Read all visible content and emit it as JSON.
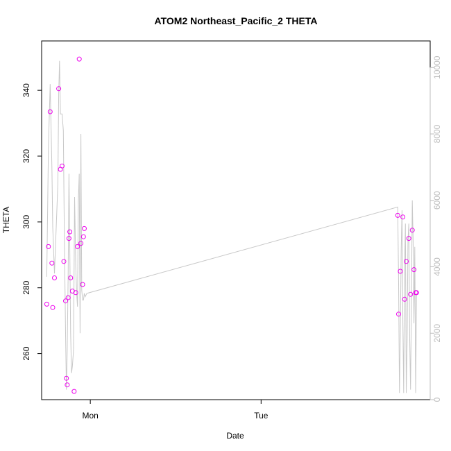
{
  "chart_data": {
    "type": "scatter",
    "title": "ATOM2 Northeast_Pacific_2 THETA",
    "xlabel": "Date",
    "ylabel": "THETA",
    "x_ticks": [
      {
        "label": "Mon",
        "value": 0
      },
      {
        "label": "Tue",
        "value": 1
      }
    ],
    "xlim": [
      -0.285,
      1.99
    ],
    "ylim": [
      246,
      355
    ],
    "yticks": [
      260,
      280,
      300,
      320,
      340
    ],
    "ylim_right": [
      0,
      10800
    ],
    "yticks_right": [
      0,
      2000,
      4000,
      6000,
      8000,
      10000
    ],
    "grid": false,
    "colors": {
      "points": "#ee00ee",
      "line": "#c8c8c8",
      "right_axis": "#bdbdbd",
      "axis": "#000000"
    },
    "series": [
      {
        "role": "points",
        "x": [
          -0.255,
          -0.245,
          -0.235,
          -0.225,
          -0.22,
          -0.21,
          -0.185,
          -0.175,
          -0.165,
          -0.155,
          -0.145,
          -0.14,
          -0.135,
          -0.13,
          -0.125,
          -0.12,
          -0.115,
          -0.105,
          -0.095,
          -0.085,
          -0.075,
          -0.065,
          -0.055,
          -0.045,
          -0.04,
          -0.035,
          1.8,
          1.805,
          1.815,
          1.83,
          1.84,
          1.85,
          1.865,
          1.875,
          1.885,
          1.895,
          1.905,
          1.91
        ],
        "y": [
          275,
          292.5,
          333.5,
          287.5,
          274,
          283,
          340.5,
          316,
          317,
          288,
          276,
          252.5,
          250.5,
          277,
          295,
          297,
          283,
          279,
          248.5,
          278.5,
          292.5,
          349.5,
          293.5,
          281,
          295.5,
          298,
          302,
          272,
          285,
          301.5,
          276.5,
          288,
          295,
          278,
          297.5,
          285.5,
          278.5,
          278.5
        ]
      },
      {
        "role": "line",
        "axis": "right",
        "x": [
          -0.255,
          -0.245,
          -0.235,
          -0.225,
          -0.22,
          -0.21,
          -0.19,
          -0.185,
          -0.18,
          -0.175,
          -0.165,
          -0.158,
          -0.152,
          -0.145,
          -0.14,
          -0.135,
          -0.13,
          -0.125,
          -0.12,
          -0.115,
          -0.11,
          -0.105,
          -0.098,
          -0.092,
          -0.085,
          -0.08,
          -0.075,
          -0.07,
          -0.065,
          -0.06,
          -0.055,
          -0.05,
          -0.045,
          -0.04,
          -0.035,
          -0.03,
          -0.025,
          -0.02,
          1.8,
          1.805,
          1.81,
          1.815,
          1.82,
          1.825,
          1.83,
          1.835,
          1.84,
          1.845,
          1.85,
          1.855,
          1.86,
          1.865,
          1.87,
          1.875,
          1.88,
          1.885,
          1.89,
          1.895,
          1.9,
          1.905,
          1.91
        ],
        "y": [
          3700,
          7600,
          9500,
          7000,
          5200,
          3800,
          6500,
          9200,
          10200,
          8600,
          8600,
          8100,
          5000,
          2000,
          300,
          1500,
          3700,
          6800,
          4500,
          2000,
          800,
          1000,
          1500,
          6100,
          4000,
          3200,
          2800,
          6000,
          6800,
          2000,
          8000,
          3300,
          3000,
          3000,
          3200,
          3100,
          3150,
          3200,
          5800,
          3500,
          200,
          1900,
          4500,
          5700,
          2400,
          200,
          4000,
          5300,
          200,
          1800,
          4800,
          5300,
          1800,
          300,
          2800,
          6000,
          4800,
          2300,
          4600,
          200,
          3200
        ]
      }
    ]
  }
}
